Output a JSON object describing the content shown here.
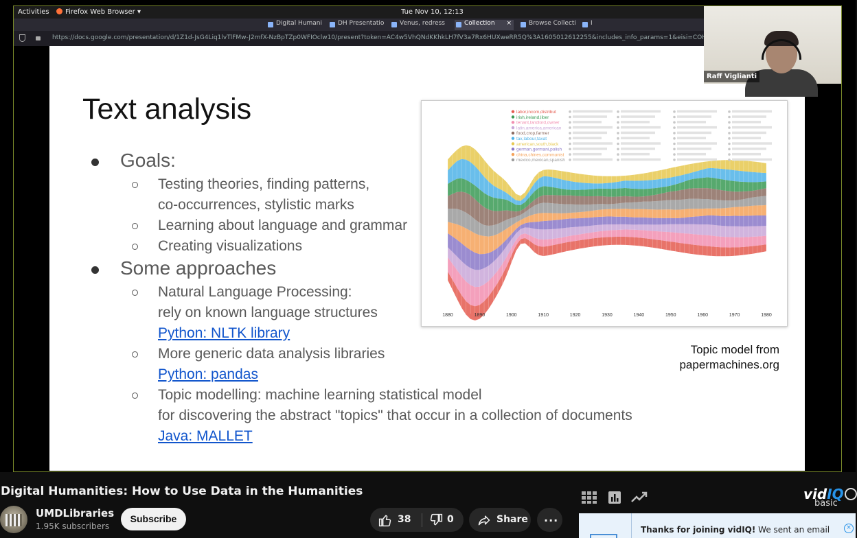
{
  "os_bar": {
    "activities": "Activities",
    "app_menu": "Firefox Web Browser ▾",
    "clock": "Tue Nov 10, 12:13"
  },
  "browser": {
    "tabs": [
      {
        "label": "Digital Humani"
      },
      {
        "label": "DH Presentatio"
      },
      {
        "label": "Venus, redress"
      },
      {
        "label": "Collection"
      },
      {
        "label": "Browse Collecti"
      },
      {
        "label": "I"
      }
    ],
    "tab_close": "×",
    "url": "https://docs.google.com/presentation/d/1Z1d-JsG4Liq1lvTlFMw-J2mfX-NzBpTZp0WFIOclw10/present?token=AC4w5VhQNdKKhkLH7fV3a7Rx6HUXweRR5Q%3A1605012612255&includes_info_params=1&eisi=COHb9P"
  },
  "webcam": {
    "name": "Raff Viglianti"
  },
  "slide": {
    "title": "Text analysis",
    "goals": "Goals:",
    "goal_items": [
      "Testing theories, finding patterns,",
      "co-occurrences, stylistic marks",
      "Learning about language and grammar",
      "Creating visualizations"
    ],
    "approaches": "Some approaches",
    "nlp_1": "Natural Language Processing:",
    "nlp_2": "rely on known language structures",
    "nlp_link": "Python: NLTK library",
    "generic": "More generic data analysis libraries",
    "pandas_link": "Python: pandas",
    "topic_1": "Topic modelling: machine learning statistical model",
    "topic_2": "for discovering the abstract \"topics\" that occur in a collection of documents",
    "mallet_link": "Java: MALLET",
    "caption_1": "Topic model from",
    "caption_2": "papermachines.org"
  },
  "chart_data": {
    "type": "area",
    "x": [
      "1880",
      "1890",
      "1900",
      "1910",
      "1920",
      "1930",
      "1940",
      "1950",
      "1960",
      "1970",
      "1980"
    ],
    "legend": [
      {
        "name": "labor,incom,distribut",
        "color": "#e45b4f"
      },
      {
        "name": "irish,ireland,liber",
        "color": "#3a9a55"
      },
      {
        "name": "tenant,landlord,owner",
        "color": "#f28fb0"
      },
      {
        "name": "latin,america,american",
        "color": "#c9a7d8"
      },
      {
        "name": "food,crop,farmer",
        "color": "#8c6d62"
      },
      {
        "name": "tax,labour,taxat",
        "color": "#4fb3e8"
      },
      {
        "name": "american,south,black",
        "color": "#e6c84f"
      },
      {
        "name": "german,germani,polish",
        "color": "#8a78c8"
      },
      {
        "name": "china,chines,communist",
        "color": "#f5a25a"
      },
      {
        "name": "mexico,mexican,spanish",
        "color": "#9a9a9a"
      }
    ],
    "series_colors": [
      "#e45b4f",
      "#f28fb0",
      "#c9a7d8",
      "#8a78c8",
      "#f5a25a",
      "#9a9a9a",
      "#8c6d62",
      "#3a9a55",
      "#4fb3e8",
      "#e6c84f"
    ]
  },
  "youtube": {
    "video_title": "Digital Humanities: How to Use Data in the Humanities",
    "channel": "UMDLibraries",
    "subscribers": "1.95K subscribers",
    "subscribe": "Subscribe",
    "likes": "38",
    "dislikes": "0",
    "share": "Share",
    "more": "···"
  },
  "vidiq": {
    "logo_a": "vid",
    "logo_b": "IQ",
    "plan": "basic",
    "msg_bold": "Thanks for joining vidIQ!",
    "msg_rest": " We sent an email",
    "close": "×",
    "accent": "#2793e8"
  }
}
